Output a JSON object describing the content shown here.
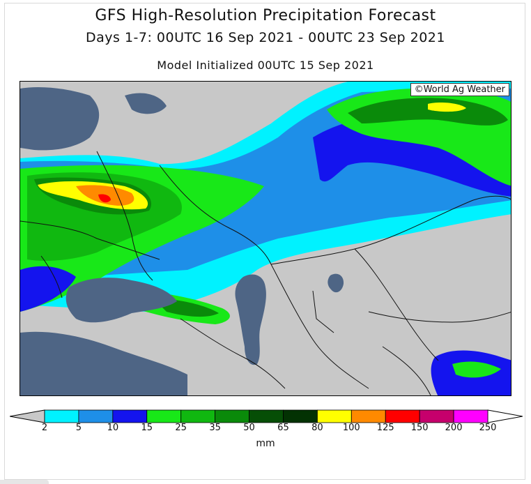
{
  "header": {
    "title": "GFS High-Resolution Precipitation Forecast",
    "period": "Days 1-7: 00UTC 16 Sep 2021 - 00UTC 23 Sep 2021",
    "init": "Model Initialized 00UTC 15 Sep 2021"
  },
  "map": {
    "credit": "©World Ag Weather",
    "colors": {
      "land": "#c8c8c8",
      "water": "#4e6585",
      "border": "#111111"
    }
  },
  "legend": {
    "unit": "mm",
    "ticks": [
      "2",
      "5",
      "10",
      "15",
      "25",
      "35",
      "50",
      "65",
      "80",
      "100",
      "125",
      "150",
      "200",
      "250"
    ],
    "colors": [
      "#00f2ff",
      "#1e8fe8",
      "#1414ee",
      "#18e818",
      "#10b810",
      "#0a8a0a",
      "#064e06",
      "#033203",
      "#ffff00",
      "#ff8a00",
      "#ff0000",
      "#c6006c",
      "#ff00ff",
      "#9c33d6"
    ],
    "low_color": "#c8c8c8",
    "high_color": "#ffffff"
  }
}
